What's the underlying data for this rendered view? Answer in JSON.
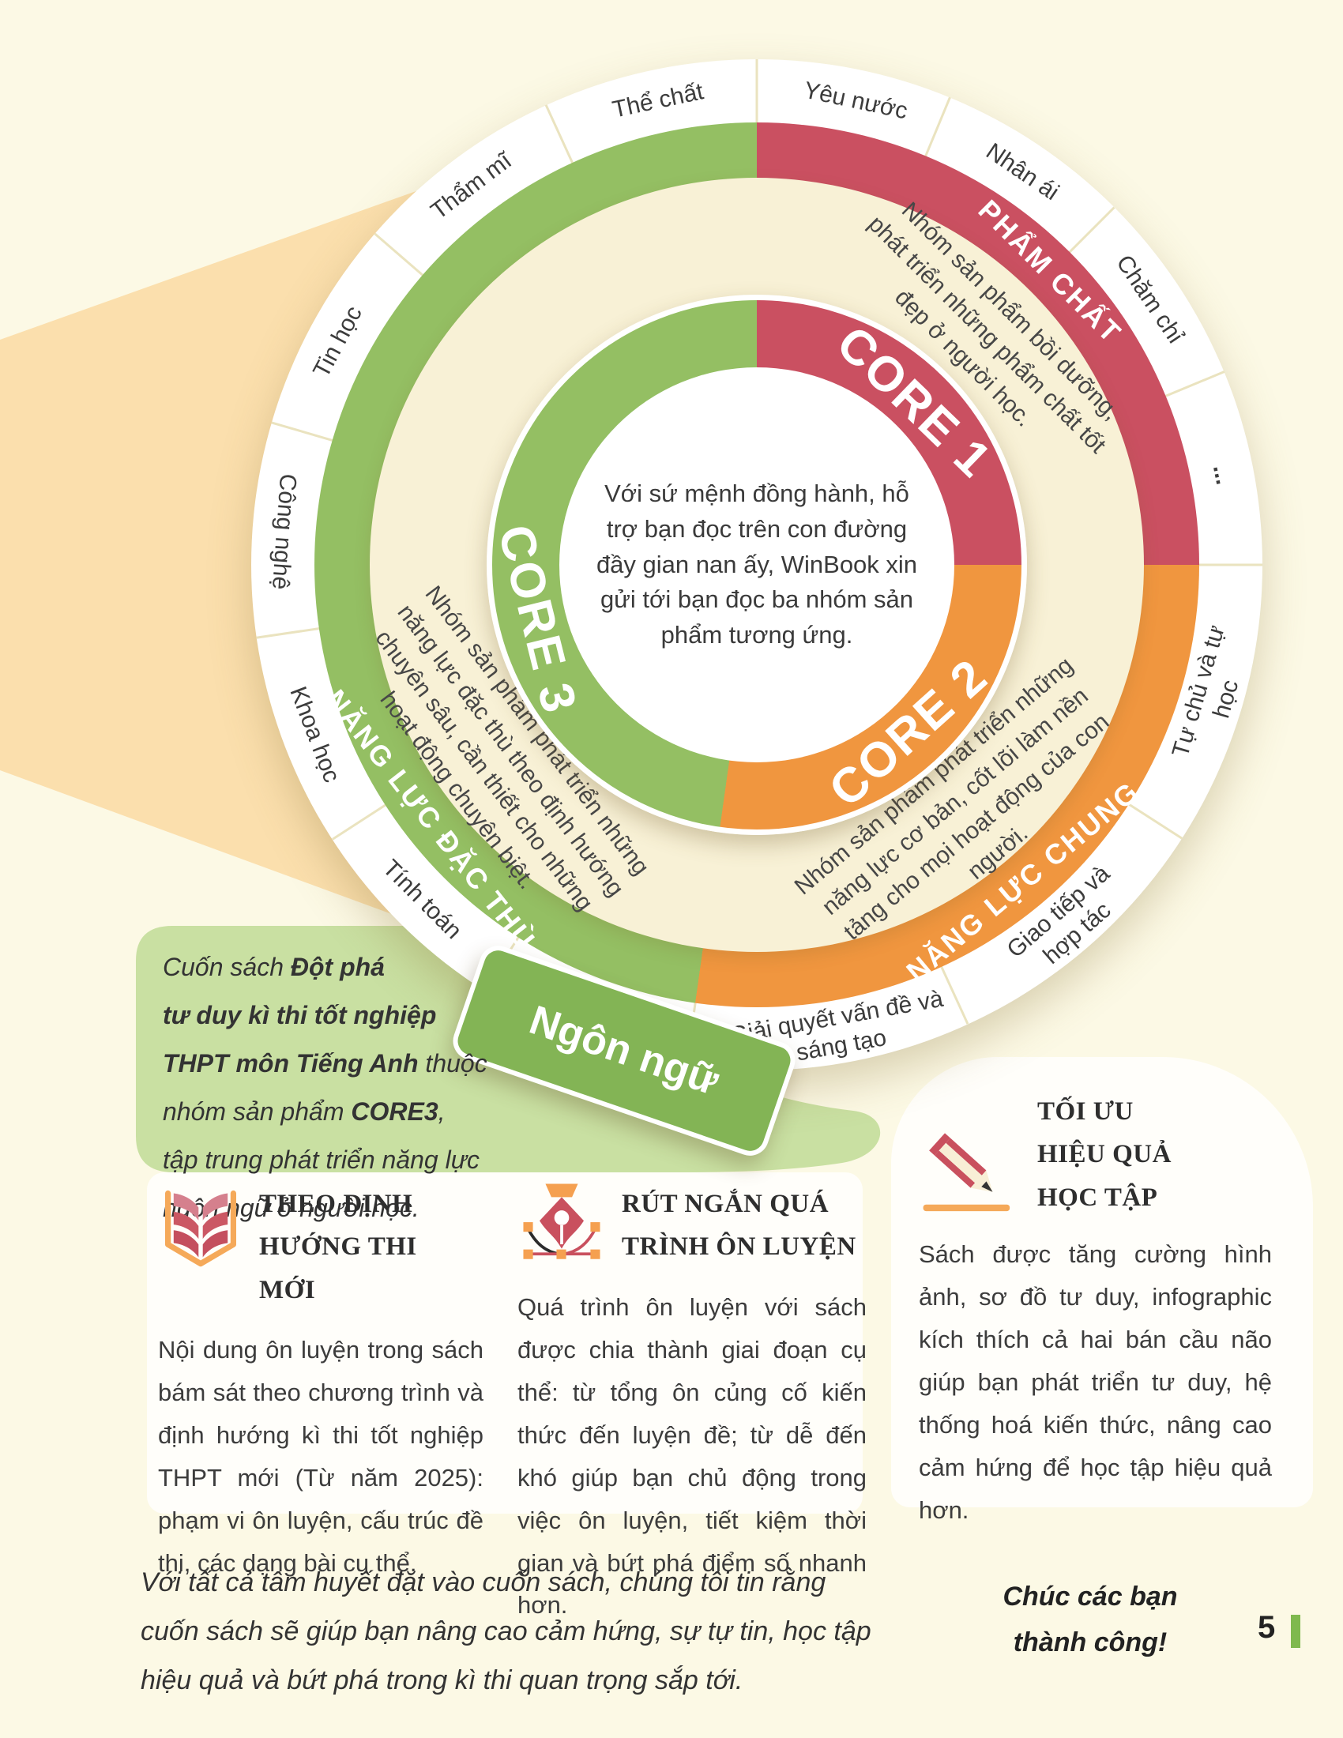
{
  "page": {
    "number": "5"
  },
  "colors": {
    "page_bg": "#fcf9e5",
    "peach": "#fbdfad",
    "cream_inner": "#f8f1d6",
    "red": "#ca5061",
    "orange": "#f0963f",
    "green": "#94bf63",
    "light_green": "#c9e0a2",
    "tab_green": "#83b455",
    "accent_bar": "#7fb94e"
  },
  "wheel": {
    "center_text": "Với sứ mệnh đồng hành, hỗ trợ bạn đọc trên con đường đầy gian nan ấy, WinBook xin gửi tới bạn đọc ba nhóm sản phẩm tương ứng.",
    "cores": [
      {
        "label": "CORE 1",
        "band": "PHẨM CHẤT",
        "color": "#ca5061",
        "desc": "Nhóm sản phẩm bồi dưỡng, phát triển những phẩm chất tốt đẹp ở người học."
      },
      {
        "label": "CORE 2",
        "band": "NĂNG LỰC CHUNG",
        "color": "#f0963f",
        "desc": "Nhóm sản phẩm phát triển những năng lực cơ bản, cốt lõi làm nền tảng cho mọi hoạt động của con người."
      },
      {
        "label": "CORE 3",
        "band": "NĂNG LỰC ĐẶC THÙ",
        "color": "#94bf63",
        "desc": "Nhóm sản phẩm phát triển những năng lực đặc thù theo định hướng chuyên sâu, cần thiết cho những hoạt động chuyên biệt."
      }
    ],
    "outer_labels": [
      "Yêu nước",
      "Nhân ái",
      "Chăm chỉ",
      "...",
      "Tự chủ và tự học",
      "Giao tiếp và hợp tác",
      "Giải quyết vấn đề và sáng tạo",
      "Tính toán",
      "Khoa học",
      "Công nghệ",
      "Tin học",
      "Thẩm mĩ",
      "Thể chất"
    ],
    "tab_label": "Ngôn ngữ"
  },
  "callout": {
    "html": "Cuốn sách <b>Đột phá</b><br><b>tư duy kì thi tốt nghiệp</b><br><b>THPT môn Tiếng Anh</b> thuộc<br>nhóm sản phẩm <b>CORE3</b>,<br>tập trung phát triển năng lực<br>ngôn ngữ ở người học."
  },
  "features": [
    {
      "icon": "open-book-icon",
      "title": "THEO ĐỊNH HƯỚNG THI MỚI",
      "body": "Nội dung ôn luyện trong sách bám sát theo chương trình và định hướng kì thi tốt nghiệp THPT mới (Từ năm 2025): phạm vi ôn luyện, cấu trúc đề thi, các dạng bài cụ thể."
    },
    {
      "icon": "pen-nib-icon",
      "title": "RÚT NGẮN QUÁ TRÌNH ÔN LUYỆN",
      "body": "Quá trình ôn luyện với sách được chia thành giai đoạn cụ thể: từ tổng ôn củng cố kiến thức đến luyện đề; từ dễ đến khó giúp bạn chủ động trong việc ôn luyện, tiết kiệm thời gian và bứt phá điểm số nhanh hơn."
    },
    {
      "icon": "pencil-icon",
      "title": "TỐI ƯU HIỆU QUẢ HỌC TẬP",
      "body": "Sách được tăng cường hình ảnh, sơ đồ tư duy, infographic kích thích cả hai bán cầu não giúp bạn phát triển tư duy, hệ thống hoá kiến thức, nâng cao cảm hứng để học tập hiệu quả hơn."
    }
  ],
  "closing": {
    "paragraph": "Với tất cả tâm huyết đặt vào cuốn sách, chúng tôi tin rằng cuốn sách sẽ giúp bạn nâng cao cảm hứng, sự tự tin, học tập hiệu quả và bứt phá trong kì thi quan trọng sắp tới.",
    "wish": "Chúc các bạn thành công!"
  }
}
